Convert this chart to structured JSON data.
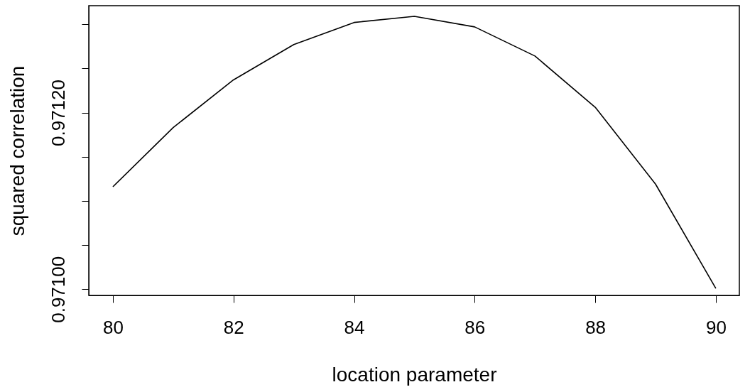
{
  "chart_data": {
    "type": "line",
    "xlabel": "location parameter",
    "ylabel": "squared correlation",
    "x": [
      80,
      81,
      82,
      83,
      84,
      85,
      86,
      87,
      88,
      89,
      90
    ],
    "series": [
      {
        "color": "#000000",
        "values": [
          0.971116,
          0.971183,
          0.971237,
          0.971277,
          0.971302,
          0.971309,
          0.971297,
          0.971264,
          0.971206,
          0.971119,
          0.971001
        ]
      }
    ],
    "xlim": [
      79.6,
      90.39
    ],
    "xticks": [
      80,
      82,
      84,
      86,
      88,
      90
    ],
    "ylim": [
      0.970993,
      0.971321
    ],
    "yticks": [
      {
        "value": 0.971,
        "label": "0.97100"
      },
      {
        "value": 0.97105,
        "label": null
      },
      {
        "value": 0.9711,
        "label": null
      },
      {
        "value": 0.97115,
        "label": null
      },
      {
        "value": 0.9712,
        "label": "0.97120"
      },
      {
        "value": 0.97125,
        "label": null
      },
      {
        "value": 0.9713,
        "label": null
      }
    ],
    "grid": false,
    "marker": "none",
    "line_style": "solid"
  }
}
